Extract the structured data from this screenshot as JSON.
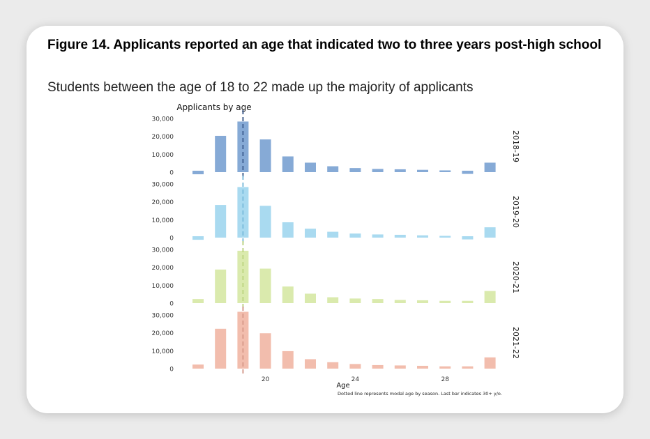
{
  "figure": {
    "title": "Figure 14. Applicants reported an age that indicated two to three years post-high school",
    "subtitle": "Students between the age of 18 to 22 made up the majority of applicants"
  },
  "chart_data": {
    "type": "bar",
    "title": "Applicants by age",
    "xlabel": "Age",
    "ylabel": "",
    "note": "Dotted line represents modal age by season. Last bar indicates 30+ y/o.",
    "categories": [
      17,
      18,
      19,
      20,
      21,
      22,
      23,
      24,
      25,
      26,
      27,
      28,
      29,
      30
    ],
    "x_ticks": [
      20,
      24,
      28
    ],
    "y_ticks": [
      0,
      10000,
      20000,
      30000
    ],
    "y_tick_labels": [
      "0",
      "10,000",
      "20,000",
      "30,000"
    ],
    "ylim": [
      -1500,
      31000
    ],
    "grid": false,
    "modal_age": 19,
    "series": [
      {
        "name": "2018-19",
        "color": "#7ca3d3",
        "mode_color": "#2e4d80",
        "values": [
          -1200,
          19500,
          27500,
          17500,
          8000,
          4500,
          2500,
          1500,
          1000,
          800,
          500,
          200,
          -1000,
          4500
        ]
      },
      {
        "name": "2019-20",
        "color": "#a2d7ef",
        "mode_color": "#6fb3d6",
        "values": [
          -1200,
          17500,
          27500,
          17000,
          7800,
          4200,
          2500,
          1500,
          1000,
          800,
          500,
          200,
          -1000,
          5000
        ]
      },
      {
        "name": "2020-21",
        "color": "#d7e8a6",
        "mode_color": "#b5cf78",
        "values": [
          1500,
          18000,
          28500,
          18500,
          8500,
          4500,
          2500,
          1800,
          1500,
          1000,
          800,
          500,
          500,
          6000
        ]
      },
      {
        "name": "2021-22",
        "color": "#f1b7a6",
        "mode_color": "#cf8f80",
        "values": [
          1500,
          21500,
          31000,
          19000,
          9000,
          4500,
          2800,
          1800,
          1200,
          1000,
          800,
          500,
          500,
          5500
        ]
      }
    ]
  }
}
